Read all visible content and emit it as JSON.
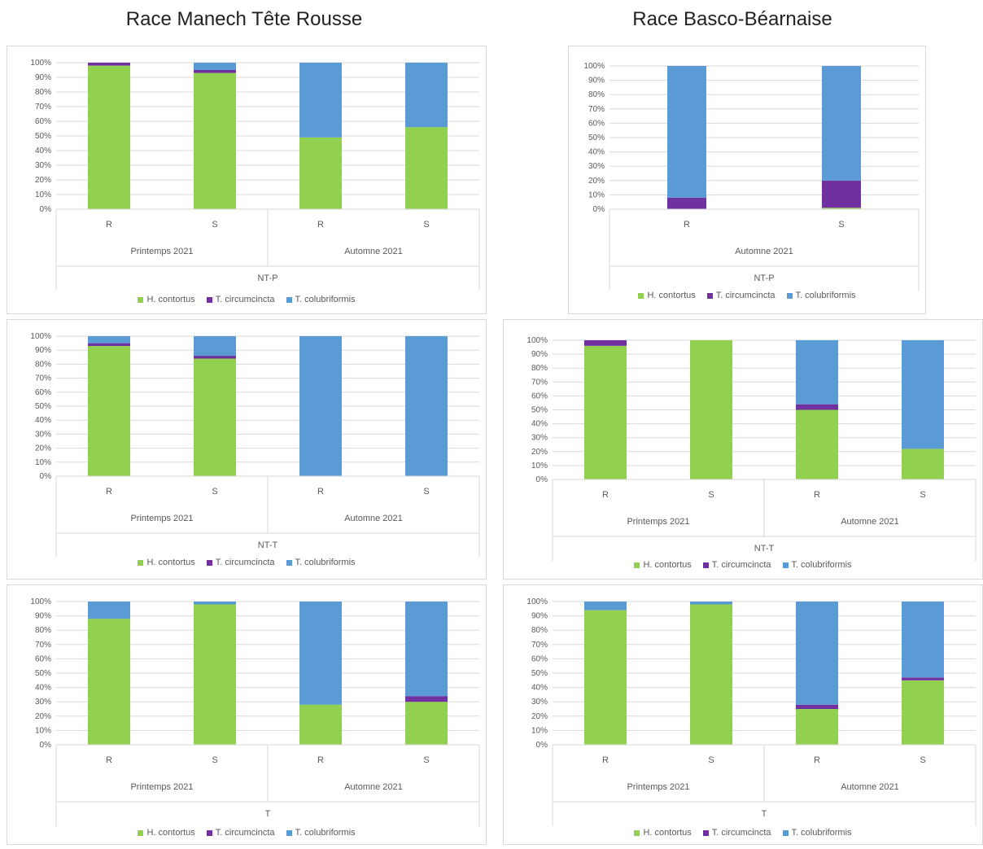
{
  "titles": {
    "left": "Race Manech Tête Rousse",
    "right": "Race Basco-Béarnaise"
  },
  "legend": [
    {
      "name": "H. contortus",
      "color": "#92d050"
    },
    {
      "name": "T. circumcincta",
      "color": "#7030a0"
    },
    {
      "name": "T. colubriformis",
      "color": "#5b9bd5"
    }
  ],
  "chart_data": [
    {
      "type": "bar",
      "stacked": true,
      "column": "left",
      "condition": "NT-P",
      "groups": [
        {
          "label": "Printemps 2021",
          "categories": [
            "R",
            "S"
          ]
        },
        {
          "label": "Automne 2021",
          "categories": [
            "R",
            "S"
          ]
        }
      ],
      "yticks": [
        "0%",
        "10%",
        "20%",
        "30%",
        "40%",
        "50%",
        "60%",
        "70%",
        "80%",
        "90%",
        "100%"
      ],
      "ylim": [
        0,
        100
      ],
      "series": [
        {
          "name": "H. contortus",
          "values": [
            98,
            93,
            49,
            56
          ]
        },
        {
          "name": "T. circumcincta",
          "values": [
            2,
            2,
            0,
            0
          ]
        },
        {
          "name": "T. colubriformis",
          "values": [
            0,
            5,
            51,
            44
          ]
        }
      ]
    },
    {
      "type": "bar",
      "stacked": true,
      "column": "right",
      "condition": "NT-P",
      "groups": [
        {
          "label": "Automne 2021",
          "categories": [
            "R",
            "S"
          ]
        }
      ],
      "yticks": [
        "0%",
        "10%",
        "20%",
        "30%",
        "40%",
        "50%",
        "60%",
        "70%",
        "80%",
        "90%",
        "100%"
      ],
      "ylim": [
        0,
        100
      ],
      "series": [
        {
          "name": "H. contortus",
          "values": [
            0,
            1
          ]
        },
        {
          "name": "T. circumcincta",
          "values": [
            8,
            19
          ]
        },
        {
          "name": "T. colubriformis",
          "values": [
            92,
            80
          ]
        }
      ]
    },
    {
      "type": "bar",
      "stacked": true,
      "column": "left",
      "condition": "NT-T",
      "groups": [
        {
          "label": "Printemps 2021",
          "categories": [
            "R",
            "S"
          ]
        },
        {
          "label": "Automne 2021",
          "categories": [
            "R",
            "S"
          ]
        }
      ],
      "yticks": [
        "0%",
        "10%",
        "20%",
        "30%",
        "40%",
        "50%",
        "60%",
        "70%",
        "80%",
        "90%",
        "100%"
      ],
      "ylim": [
        0,
        100
      ],
      "series": [
        {
          "name": "H. contortus",
          "values": [
            93,
            84,
            0,
            0
          ]
        },
        {
          "name": "T. circumcincta",
          "values": [
            2,
            2,
            0,
            0
          ]
        },
        {
          "name": "T. colubriformis",
          "values": [
            5,
            14,
            100,
            100
          ]
        }
      ]
    },
    {
      "type": "bar",
      "stacked": true,
      "column": "right",
      "condition": "NT-T",
      "groups": [
        {
          "label": "Printemps 2021",
          "categories": [
            "R",
            "S"
          ]
        },
        {
          "label": "Automne 2021",
          "categories": [
            "R",
            "S"
          ]
        }
      ],
      "yticks": [
        "0%",
        "10%",
        "20%",
        "30%",
        "40%",
        "50%",
        "60%",
        "70%",
        "80%",
        "90%",
        "100%"
      ],
      "ylim": [
        0,
        100
      ],
      "series": [
        {
          "name": "H. contortus",
          "values": [
            96,
            100,
            50,
            22
          ]
        },
        {
          "name": "T. circumcincta",
          "values": [
            4,
            0,
            4,
            0
          ]
        },
        {
          "name": "T. colubriformis",
          "values": [
            0,
            0,
            46,
            78
          ]
        }
      ]
    },
    {
      "type": "bar",
      "stacked": true,
      "column": "left",
      "condition": "T",
      "groups": [
        {
          "label": "Printemps 2021",
          "categories": [
            "R",
            "S"
          ]
        },
        {
          "label": "Automne 2021",
          "categories": [
            "R",
            "S"
          ]
        }
      ],
      "yticks": [
        "0%",
        "10%",
        "20%",
        "30%",
        "40%",
        "50%",
        "60%",
        "70%",
        "80%",
        "90%",
        "100%"
      ],
      "ylim": [
        0,
        100
      ],
      "series": [
        {
          "name": "H. contortus",
          "values": [
            88,
            98,
            28,
            30
          ]
        },
        {
          "name": "T. circumcincta",
          "values": [
            0,
            0,
            0,
            4
          ]
        },
        {
          "name": "T. colubriformis",
          "values": [
            12,
            2,
            72,
            66
          ]
        }
      ]
    },
    {
      "type": "bar",
      "stacked": true,
      "column": "right",
      "condition": "T",
      "groups": [
        {
          "label": "Printemps 2021",
          "categories": [
            "R",
            "S"
          ]
        },
        {
          "label": "Automne 2021",
          "categories": [
            "R",
            "S"
          ]
        }
      ],
      "yticks": [
        "0%",
        "10%",
        "20%",
        "30%",
        "40%",
        "50%",
        "60%",
        "70%",
        "80%",
        "90%",
        "100%"
      ],
      "ylim": [
        0,
        100
      ],
      "series": [
        {
          "name": "H. contortus",
          "values": [
            94,
            98,
            25,
            45
          ]
        },
        {
          "name": "T. circumcincta",
          "values": [
            0,
            0,
            3,
            2
          ]
        },
        {
          "name": "T. colubriformis",
          "values": [
            6,
            2,
            72,
            53
          ]
        }
      ]
    }
  ]
}
